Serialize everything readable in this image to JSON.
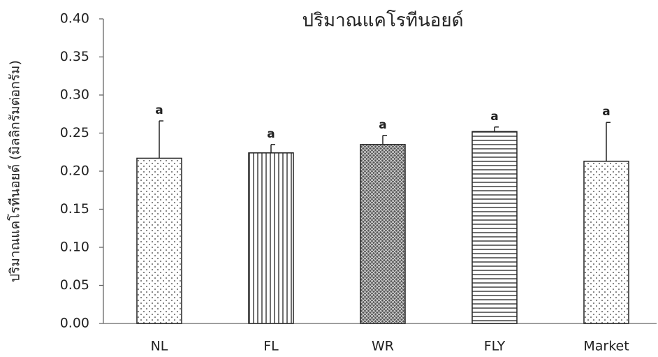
{
  "chart_data": {
    "type": "bar",
    "title": "ปริมาณแคโรทีนอยด์",
    "y_label": "ปริมาณแคโรทีนอยด์ (มิลลิกรัมต่อกรัม)",
    "categories": [
      "NL",
      "FL",
      "WR",
      "FLY",
      "Market"
    ],
    "values": [
      0.217,
      0.224,
      0.235,
      0.252,
      0.213
    ],
    "errors": [
      0.049,
      0.011,
      0.012,
      0.006,
      0.051
    ],
    "annotations": [
      "a",
      "a",
      "a",
      "a",
      "a"
    ],
    "patterns": [
      "dots",
      "vertical",
      "cross",
      "horizontal",
      "dots"
    ],
    "color": "#222222",
    "ylim": [
      0,
      0.4
    ],
    "yticks": [
      {
        "value": 0,
        "label": "0.00"
      },
      {
        "value": 0.05,
        "label": "0.05"
      },
      {
        "value": 0.1,
        "label": "0.10"
      },
      {
        "value": 0.15,
        "label": "0.15"
      },
      {
        "value": 0.2,
        "label": "0.20"
      },
      {
        "value": 0.25,
        "label": "0.25"
      },
      {
        "value": 0.3,
        "label": "0.30"
      },
      {
        "value": 0.35,
        "label": "0.35"
      },
      {
        "value": 0.4,
        "label": "0.40"
      }
    ],
    "grid": false
  }
}
